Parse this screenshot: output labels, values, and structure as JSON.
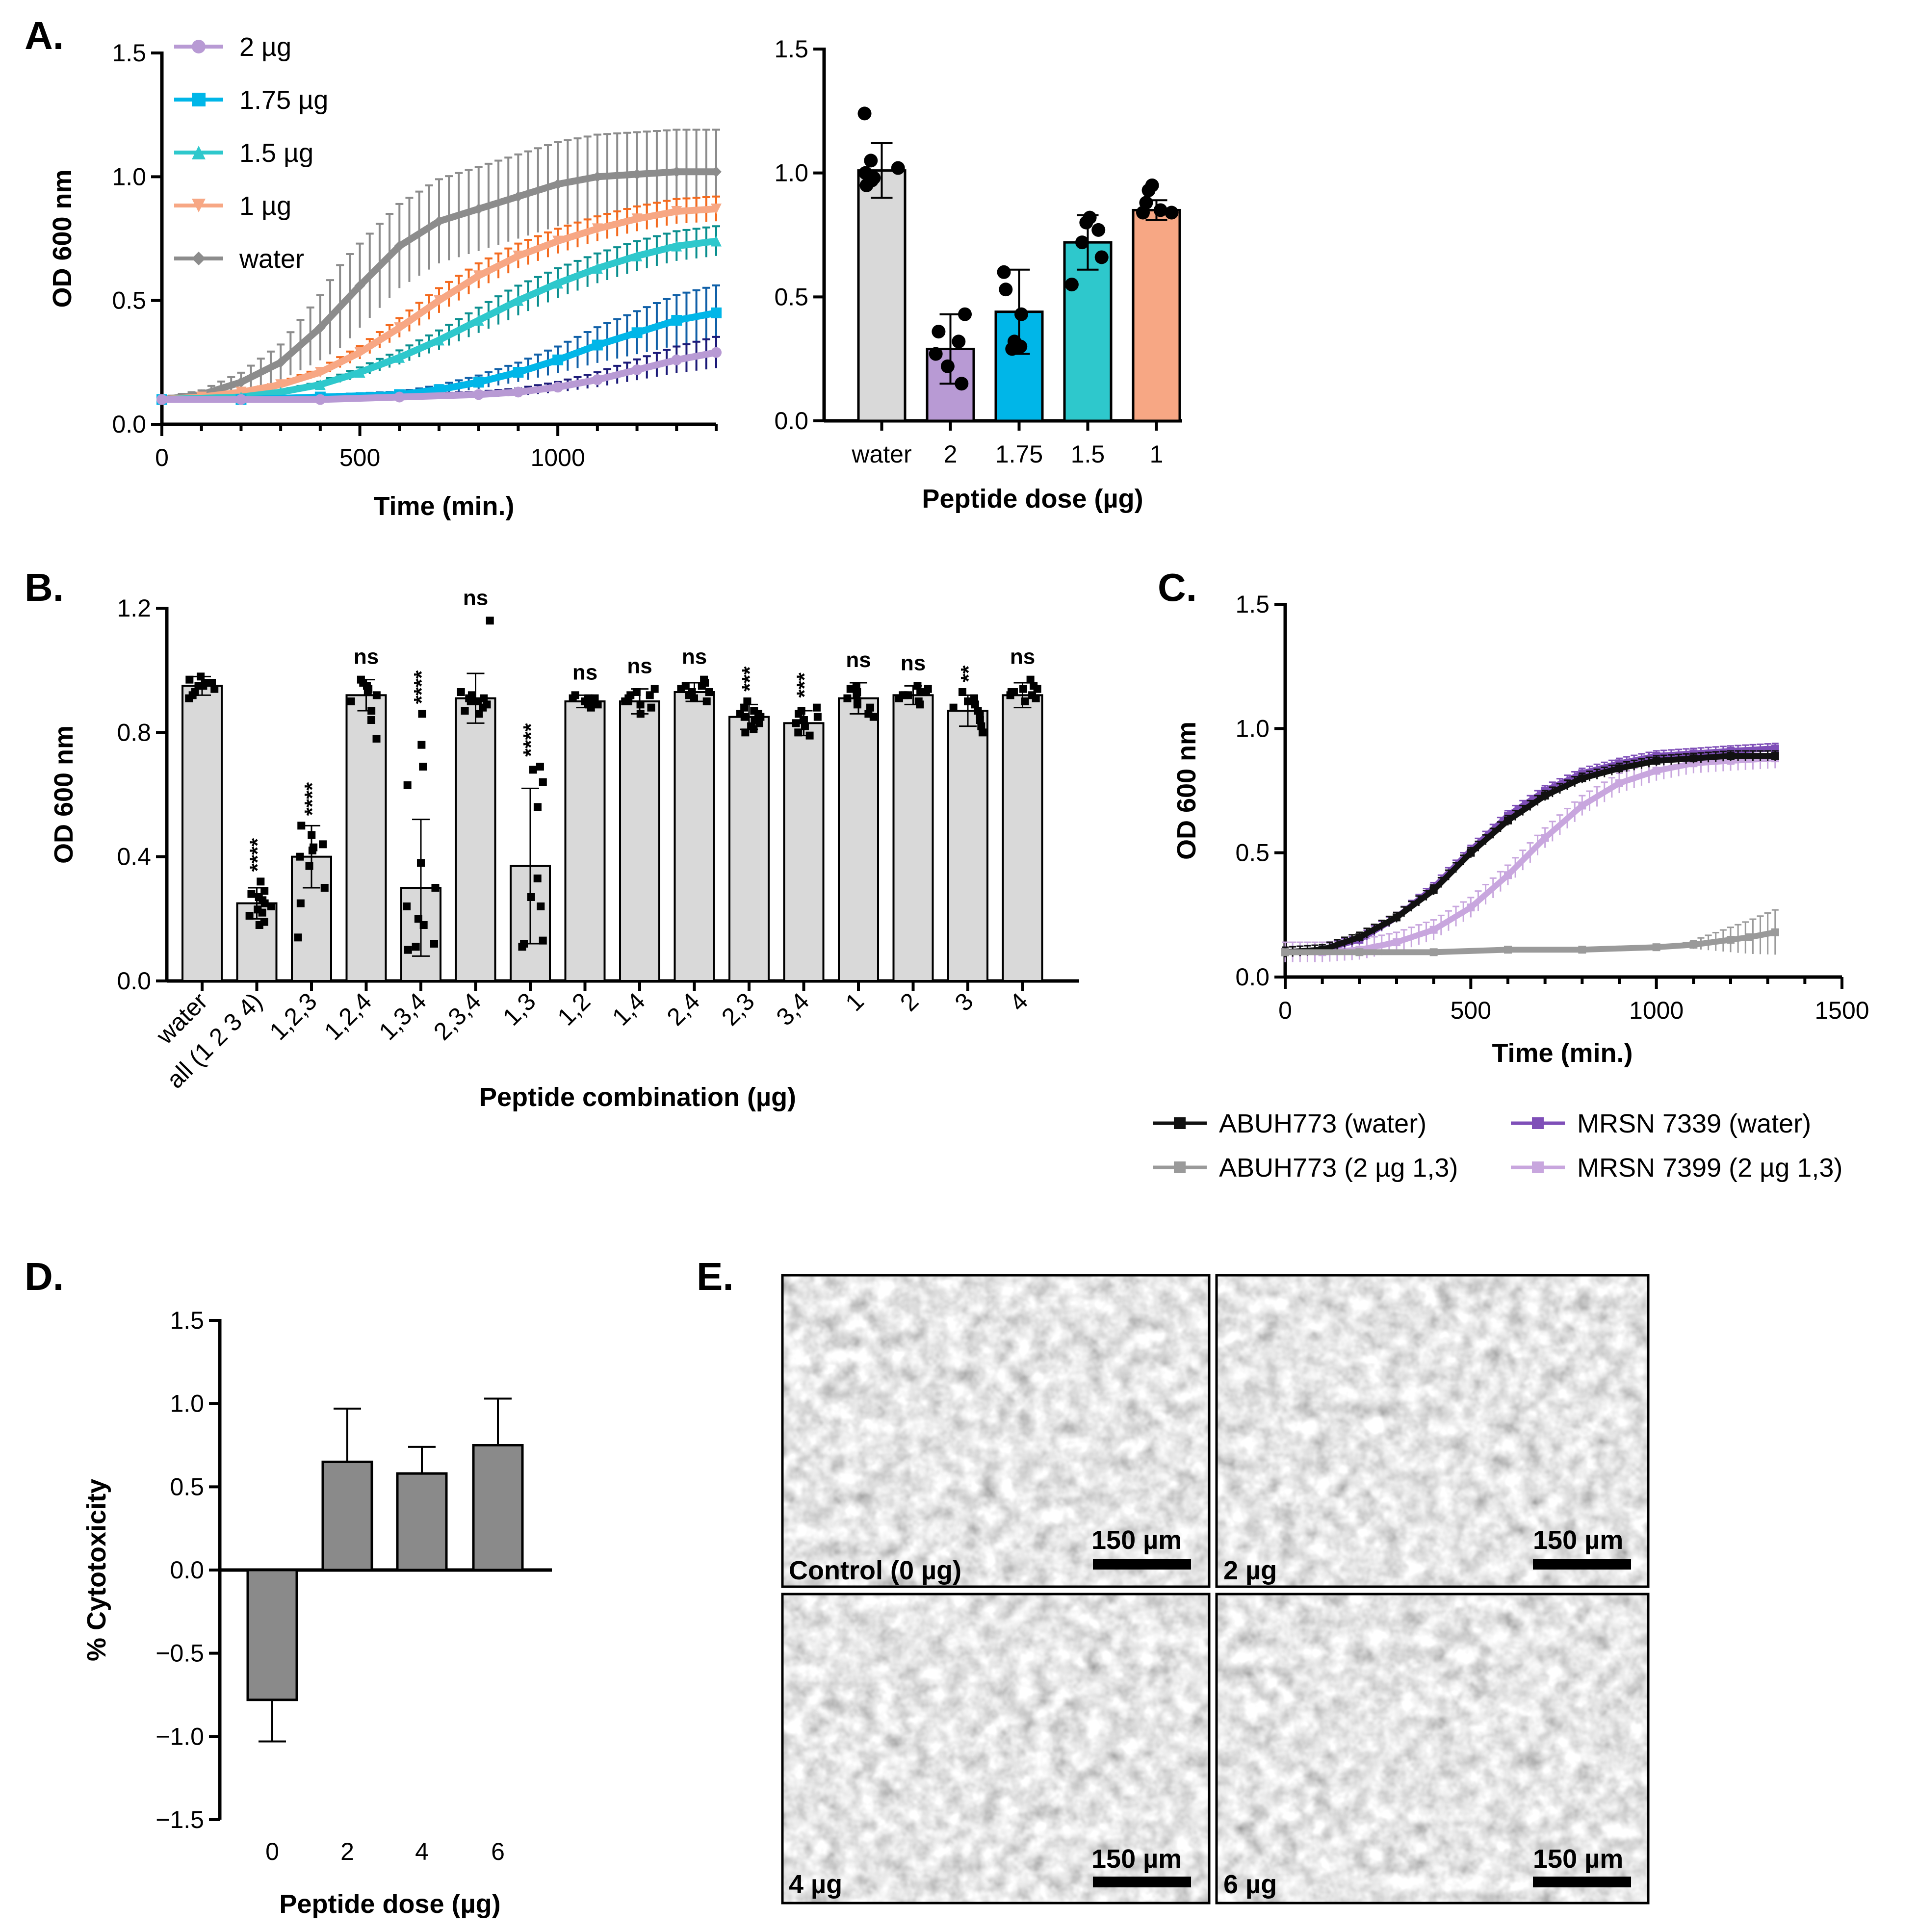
{
  "colors": {
    "water": "#8c8c8c",
    "d2": "#b89ad4",
    "d175": "#00b6e8",
    "d15": "#2ec8cc",
    "d1": "#f7a784",
    "orange_dark": "#f46a1e",
    "teal_dark": "#0a8f8f",
    "blue_dark": "#1060a8",
    "navy": "#1c1a78",
    "bar_gray": "#d9d9d9",
    "bar_dark": "#8a8a8a",
    "abuh_water": "#111111",
    "abuh_pep": "#9a9a9a",
    "mrsn_water": "#7f4fb8",
    "mrsn_pep": "#c8a6de"
  },
  "chart_data": [
    {
      "panel": "A.",
      "type": "line",
      "xlabel": "Time (min.)",
      "ylabel": "OD 600 nm",
      "xlim": [
        0,
        1400
      ],
      "ylim": [
        0.0,
        1.5
      ],
      "xticks": [
        "0",
        "500",
        "1000"
      ],
      "yticks": [
        "0.0",
        "0.5",
        "1.0",
        "1.5"
      ],
      "legend_position": "top-left",
      "series": [
        {
          "name": "2 µg",
          "marker": "circle",
          "color_key": "d2",
          "x": [
            0,
            200,
            400,
            600,
            800,
            900,
            1000,
            1100,
            1200,
            1300,
            1400
          ],
          "y": [
            0.1,
            0.1,
            0.1,
            0.11,
            0.12,
            0.13,
            0.15,
            0.18,
            0.22,
            0.26,
            0.29
          ]
        },
        {
          "name": "1.75 µg",
          "marker": "square",
          "color_key": "d175",
          "x": [
            0,
            200,
            400,
            600,
            700,
            800,
            900,
            1000,
            1100,
            1200,
            1300,
            1400
          ],
          "y": [
            0.1,
            0.1,
            0.11,
            0.12,
            0.14,
            0.17,
            0.21,
            0.26,
            0.32,
            0.37,
            0.42,
            0.45
          ]
        },
        {
          "name": "1.5 µg",
          "marker": "triangle-up",
          "color_key": "d15",
          "x": [
            0,
            200,
            300,
            400,
            500,
            600,
            700,
            800,
            900,
            1000,
            1100,
            1200,
            1300,
            1400
          ],
          "y": [
            0.1,
            0.11,
            0.13,
            0.16,
            0.21,
            0.27,
            0.34,
            0.42,
            0.5,
            0.57,
            0.63,
            0.68,
            0.72,
            0.74
          ]
        },
        {
          "name": "1 µg",
          "marker": "triangle-down",
          "color_key": "d1",
          "x": [
            0,
            100,
            200,
            300,
            400,
            500,
            600,
            700,
            800,
            900,
            1000,
            1100,
            1200,
            1300,
            1400
          ],
          "y": [
            0.1,
            0.11,
            0.13,
            0.16,
            0.21,
            0.29,
            0.39,
            0.5,
            0.6,
            0.68,
            0.74,
            0.79,
            0.83,
            0.86,
            0.87
          ]
        },
        {
          "name": "water",
          "marker": "diamond",
          "color_key": "water",
          "x": [
            0,
            100,
            200,
            300,
            400,
            500,
            600,
            700,
            800,
            900,
            1000,
            1100,
            1200,
            1300,
            1400
          ],
          "y": [
            0.1,
            0.12,
            0.17,
            0.25,
            0.39,
            0.56,
            0.72,
            0.82,
            0.87,
            0.92,
            0.97,
            1.0,
            1.01,
            1.02,
            1.02
          ]
        }
      ]
    },
    {
      "panel": "A. (bars)",
      "type": "bar",
      "xlabel": "Peptide dose (µg)",
      "ylabel": "",
      "ylim": [
        0.0,
        1.5
      ],
      "yticks": [
        "0.0",
        "0.5",
        "1.0",
        "1.5"
      ],
      "categories": [
        "water",
        "2",
        "1.75",
        "1.5",
        "1"
      ],
      "values": [
        1.01,
        0.29,
        0.44,
        0.72,
        0.85
      ],
      "errors": [
        0.11,
        0.14,
        0.17,
        0.11,
        0.04
      ],
      "color_keys": [
        "bar_gray",
        "d2",
        "d175",
        "d15",
        "d1"
      ],
      "points": [
        [
          1.24,
          1.05,
          1.0,
          0.98,
          0.97,
          0.95,
          1.02
        ],
        [
          0.43,
          0.32,
          0.27,
          0.22,
          0.15,
          0.36
        ],
        [
          0.6,
          0.43,
          0.32,
          0.29,
          0.3,
          0.53
        ],
        [
          0.82,
          0.8,
          0.72,
          0.66,
          0.55,
          0.77
        ],
        [
          0.95,
          0.93,
          0.84,
          0.85,
          0.84,
          0.88
        ]
      ]
    },
    {
      "panel": "B.",
      "type": "bar",
      "xlabel": "Peptide combination (µg)",
      "ylabel": "OD 600 nm",
      "ylim": [
        0.0,
        1.2
      ],
      "yticks": [
        "0.0",
        "0.4",
        "0.8",
        "1.2"
      ],
      "categories": [
        "water",
        "all (1 2 3 4)",
        "1,2,3",
        "1,2,4",
        "1,3,4",
        "2,3,4",
        "1,3",
        "1,2",
        "1,4",
        "2,4",
        "2,3",
        "3,4",
        "1",
        "2",
        "3",
        "4"
      ],
      "values": [
        0.95,
        0.25,
        0.4,
        0.92,
        0.3,
        0.91,
        0.37,
        0.9,
        0.9,
        0.93,
        0.85,
        0.83,
        0.91,
        0.92,
        0.87,
        0.92
      ],
      "errors": [
        0.03,
        0.05,
        0.1,
        0.05,
        0.22,
        0.08,
        0.25,
        0.02,
        0.04,
        0.03,
        0.04,
        0.04,
        0.05,
        0.03,
        0.05,
        0.04
      ],
      "significance": [
        "",
        "****",
        "****",
        "ns",
        "****",
        "ns",
        "****",
        "ns",
        "ns",
        "ns",
        "***",
        "***",
        "ns",
        "ns",
        "**",
        "ns"
      ],
      "points": [
        [
          0.98,
          0.96,
          0.95,
          0.94,
          0.93,
          0.92,
          0.97,
          0.95,
          0.91,
          0.96
        ],
        [
          0.32,
          0.29,
          0.27,
          0.26,
          0.24,
          0.22,
          0.21,
          0.19,
          0.18,
          0.28,
          0.25,
          0.23
        ],
        [
          0.5,
          0.47,
          0.43,
          0.4,
          0.37,
          0.3,
          0.25,
          0.14,
          0.44,
          0.42
        ],
        [
          0.97,
          0.95,
          0.94,
          0.92,
          0.9,
          0.87,
          0.84,
          0.78,
          0.93,
          0.96
        ],
        [
          0.86,
          0.76,
          0.69,
          0.63,
          0.38,
          0.3,
          0.2,
          0.12,
          0.1,
          0.11,
          0.24,
          0.18
        ],
        [
          1.16,
          0.93,
          0.92,
          0.91,
          0.9,
          0.89,
          0.88,
          0.87,
          0.86,
          0.91,
          0.9
        ],
        [
          0.69,
          0.68,
          0.64,
          0.56,
          0.33,
          0.27,
          0.24,
          0.13,
          0.11,
          0.12
        ],
        [
          0.92,
          0.91,
          0.9,
          0.9,
          0.89,
          0.89,
          0.88,
          0.91,
          0.9,
          0.91
        ],
        [
          0.94,
          0.93,
          0.92,
          0.91,
          0.9,
          0.89,
          0.88,
          0.86,
          0.9,
          0.92
        ],
        [
          0.97,
          0.96,
          0.95,
          0.94,
          0.93,
          0.92,
          0.91,
          0.9,
          0.95,
          0.93
        ],
        [
          0.9,
          0.88,
          0.87,
          0.86,
          0.85,
          0.84,
          0.83,
          0.82,
          0.81,
          0.8,
          0.86,
          0.85
        ],
        [
          0.88,
          0.87,
          0.85,
          0.84,
          0.83,
          0.82,
          0.8,
          0.79,
          0.84,
          0.86
        ],
        [
          0.95,
          0.94,
          0.93,
          0.92,
          0.9,
          0.89,
          0.88,
          0.86,
          0.85,
          0.91
        ],
        [
          0.95,
          0.94,
          0.93,
          0.92,
          0.92,
          0.91,
          0.9,
          0.89,
          0.93,
          0.92
        ],
        [
          0.93,
          0.91,
          0.9,
          0.88,
          0.86,
          0.84,
          0.82,
          0.8,
          0.87,
          0.89
        ],
        [
          0.97,
          0.95,
          0.94,
          0.93,
          0.92,
          0.91,
          0.9,
          0.93,
          0.94,
          0.92
        ]
      ]
    },
    {
      "panel": "C.",
      "type": "line",
      "xlabel": "Time (min.)",
      "ylabel": "OD 600 nm",
      "xlim": [
        0,
        1500
      ],
      "ylim": [
        0.0,
        1.5
      ],
      "xticks": [
        "0",
        "500",
        "1000",
        "1500"
      ],
      "yticks": [
        "0.0",
        "0.5",
        "1.0",
        "1.5"
      ],
      "legend_position": "bottom",
      "series": [
        {
          "name": "ABUH773 (water)",
          "color_key": "abuh_water",
          "x": [
            0,
            100,
            200,
            300,
            400,
            500,
            600,
            700,
            800,
            900,
            1000,
            1100,
            1200,
            1320
          ],
          "y": [
            0.1,
            0.11,
            0.16,
            0.24,
            0.35,
            0.5,
            0.63,
            0.73,
            0.8,
            0.84,
            0.87,
            0.88,
            0.89,
            0.89
          ]
        },
        {
          "name": "ABUH773 (2 µg 1,3)",
          "color_key": "abuh_pep",
          "x": [
            0,
            200,
            400,
            600,
            800,
            1000,
            1100,
            1200,
            1250,
            1320
          ],
          "y": [
            0.1,
            0.1,
            0.1,
            0.11,
            0.11,
            0.12,
            0.13,
            0.15,
            0.16,
            0.18
          ]
        },
        {
          "name": "MRSN 7339 (water)",
          "color_key": "mrsn_water",
          "x": [
            0,
            100,
            200,
            300,
            400,
            500,
            600,
            700,
            800,
            900,
            1000,
            1100,
            1200,
            1320
          ],
          "y": [
            0.1,
            0.11,
            0.15,
            0.24,
            0.36,
            0.51,
            0.65,
            0.75,
            0.82,
            0.86,
            0.89,
            0.9,
            0.91,
            0.92
          ]
        },
        {
          "name": "MRSN 7399 (2 µg 1,3)",
          "color_key": "mrsn_pep",
          "x": [
            0,
            100,
            200,
            300,
            400,
            500,
            600,
            700,
            800,
            900,
            1000,
            1100,
            1200,
            1320
          ],
          "y": [
            0.1,
            0.1,
            0.11,
            0.14,
            0.19,
            0.28,
            0.41,
            0.56,
            0.69,
            0.78,
            0.83,
            0.86,
            0.87,
            0.88
          ]
        }
      ]
    },
    {
      "panel": "D.",
      "type": "bar",
      "xlabel": "Peptide dose (µg)",
      "ylabel": "% Cytotoxicity",
      "ylim": [
        -1.5,
        1.5
      ],
      "yticks": [
        "1.5",
        "1.0",
        "0.5",
        "0.0",
        "−0.5",
        "−1.0",
        "−1.5"
      ],
      "categories": [
        "0",
        "2",
        "4",
        "6"
      ],
      "values": [
        -0.78,
        0.65,
        0.58,
        0.75
      ],
      "errors": [
        0.25,
        0.32,
        0.16,
        0.28
      ]
    }
  ],
  "panel_e": {
    "label": "E.",
    "images": [
      {
        "caption": "Control (0 µg)",
        "scale": "150 µm"
      },
      {
        "caption": "2 µg",
        "scale": "150 µm"
      },
      {
        "caption": "4 µg",
        "scale": "150 µm"
      },
      {
        "caption": "6 µg",
        "scale": "150 µm"
      }
    ]
  }
}
